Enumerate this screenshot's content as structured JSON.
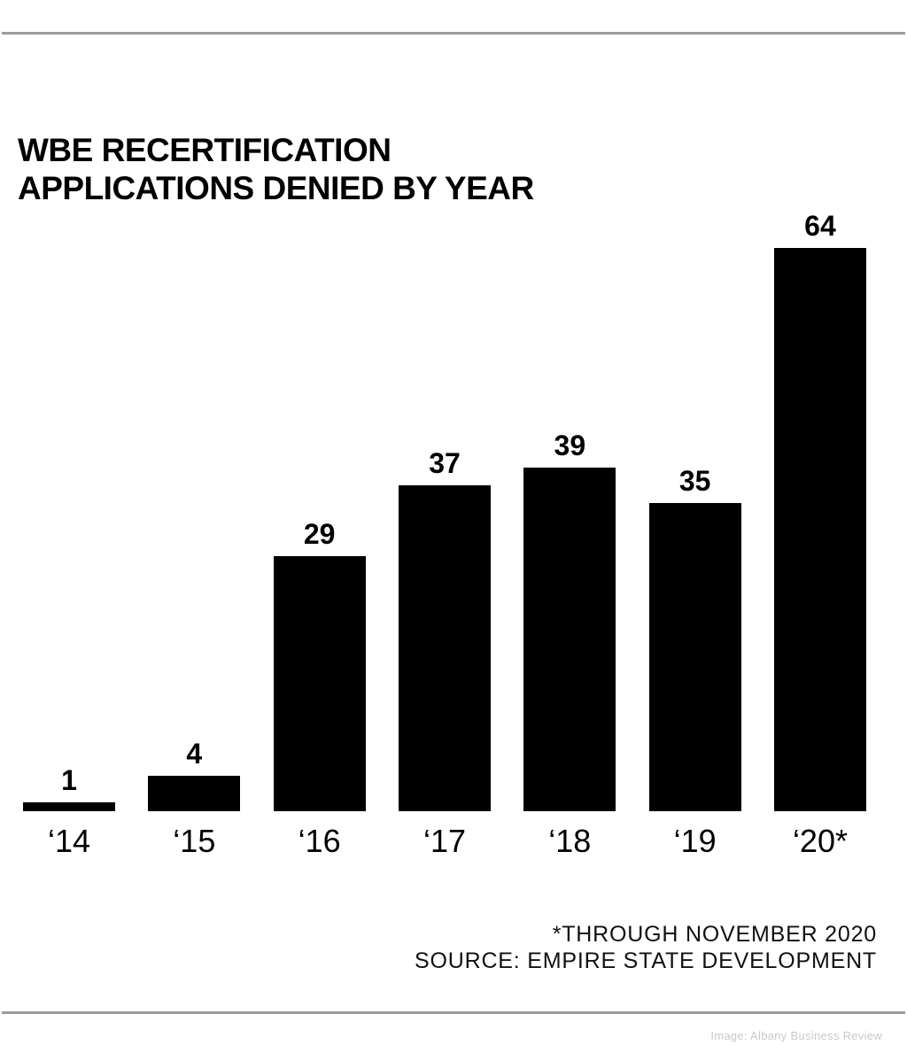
{
  "page": {
    "title_line1": "WBE RECERTIFICATION",
    "title_line2": "APPLICATIONS DENIED BY YEAR",
    "footnote": "*THROUGH NOVEMBER 2020",
    "source": "SOURCE: EMPIRE STATE DEVELOPMENT",
    "credit": "Image: Albany Business Review"
  },
  "colors": {
    "bar": "#000000",
    "rule": "#9c9c9c",
    "title_text": "#000000",
    "footer_text": "#111111",
    "credit_text": "#c9c9c9"
  },
  "chart_data": {
    "type": "bar",
    "title": "WBE RECERTIFICATION APPLICATIONS DENIED BY YEAR",
    "categories": [
      "‘14",
      "‘15",
      "‘16",
      "‘17",
      "‘18",
      "‘19",
      "‘20*"
    ],
    "values": [
      1,
      4,
      29,
      37,
      39,
      35,
      64
    ],
    "xlabel": "",
    "ylabel": "",
    "ylim": [
      0,
      64
    ],
    "grid": false,
    "legend": false,
    "value_labels_shown": true,
    "bar_color": "#000000",
    "footnote": "*THROUGH NOVEMBER 2020",
    "source": "SOURCE: EMPIRE STATE DEVELOPMENT"
  }
}
